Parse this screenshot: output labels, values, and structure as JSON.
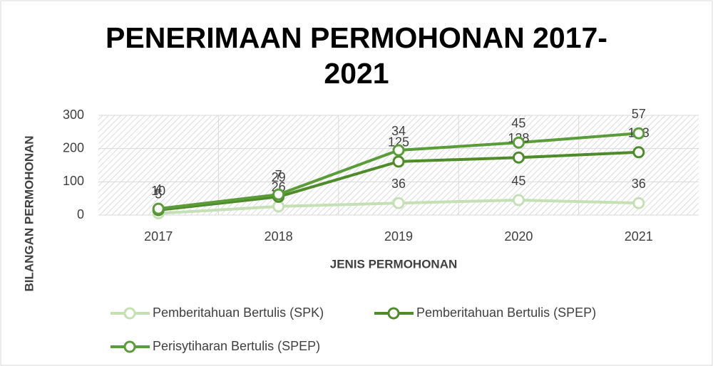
{
  "chart_data": {
    "type": "line",
    "stacked": true,
    "title": "PENERIMAAN PERMOHONAN 2017-2021",
    "x_label": "JENIS PERMOHONAN",
    "y_label": "BILANGAN PERMOHONAN",
    "categories": [
      "2017",
      "2018",
      "2019",
      "2020",
      "2021"
    ],
    "series": [
      {
        "name": "Pemberitahuan Bertulis (SPK)",
        "color": "#c5e0b4",
        "values": [
          5,
          26,
          36,
          45,
          36
        ]
      },
      {
        "name": "Pemberitahuan Bertulis (SPEP)",
        "color": "#4f8a2b",
        "values": [
          10,
          29,
          125,
          128,
          153
        ]
      },
      {
        "name": "Perisytiharan Bertulis (SPEP)",
        "color": "#5b9c3a",
        "values": [
          4,
          7,
          34,
          45,
          57
        ]
      }
    ],
    "ylim": [
      0,
      300
    ],
    "yticks": [
      0,
      100,
      200,
      300
    ],
    "grid": true,
    "legend": "bottom"
  }
}
